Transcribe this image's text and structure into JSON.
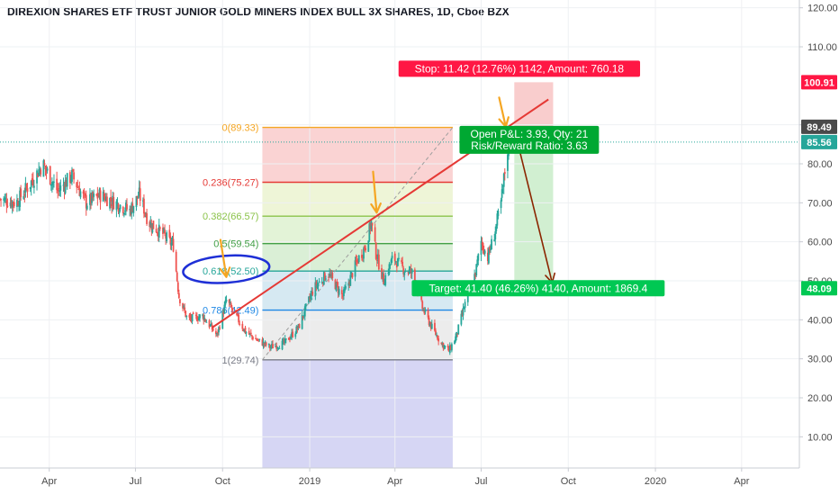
{
  "title": "DIREXION SHARES ETF TRUST JUNIOR GOLD MINERS INDEX BULL 3X SHARES, 1D, Cboe BZX",
  "colors": {
    "up": "#26a69a",
    "down": "#ef5350",
    "trendline": "#e53935",
    "stop_box": "#ff1744",
    "target_box": "#00c853",
    "blue_ink": "#1e2fd6",
    "arrow_orange": "#f5a623",
    "arrow_brown": "#8b2500"
  },
  "chart_data": {
    "type": "candlestick",
    "title": "DIREXION SHARES ETF TRUST JUNIOR GOLD MINERS INDEX BULL 3X SHARES, 1D, Cboe BZX",
    "y_axis": {
      "ylim": [
        2,
        122
      ],
      "ticks": [
        "10.00",
        "20.00",
        "30.00",
        "40.00",
        "50.00",
        "60.00",
        "70.00",
        "80.00",
        "90.00",
        "110.00",
        "120.00"
      ],
      "tick_values": [
        10,
        20,
        30,
        40,
        50,
        60,
        70,
        80,
        90,
        110,
        120
      ]
    },
    "x_axis": {
      "xlim": [
        "2018-02-08",
        "2020-06-01"
      ],
      "ticks": [
        "Apr",
        "Jul",
        "Oct",
        "2019",
        "Apr",
        "Jul",
        "Oct",
        "2020",
        "Apr"
      ],
      "tick_dates": [
        "2018-04-01",
        "2018-07-01",
        "2018-10-01",
        "2019-01-01",
        "2019-04-01",
        "2019-07-01",
        "2019-10-01",
        "2020-01-01",
        "2020-04-01"
      ]
    },
    "price_path": [
      [
        "2018-02-08",
        71
      ],
      [
        "2018-02-25",
        70
      ],
      [
        "2018-03-15",
        76
      ],
      [
        "2018-03-25",
        80
      ],
      [
        "2018-04-10",
        73
      ],
      [
        "2018-04-25",
        77
      ],
      [
        "2018-05-10",
        70
      ],
      [
        "2018-05-25",
        72
      ],
      [
        "2018-06-10",
        70
      ],
      [
        "2018-06-25",
        68
      ],
      [
        "2018-07-05",
        72
      ],
      [
        "2018-07-15",
        65
      ],
      [
        "2018-07-30",
        62
      ],
      [
        "2018-08-10",
        59
      ],
      [
        "2018-08-16",
        46
      ],
      [
        "2018-08-25",
        40
      ],
      [
        "2018-09-10",
        41
      ],
      [
        "2018-09-25",
        36
      ],
      [
        "2018-10-05",
        45
      ],
      [
        "2018-10-15",
        41
      ],
      [
        "2018-10-25",
        37
      ],
      [
        "2018-11-05",
        35
      ],
      [
        "2018-11-20",
        33
      ],
      [
        "2018-12-05",
        34
      ],
      [
        "2018-12-20",
        38
      ],
      [
        "2019-01-05",
        48
      ],
      [
        "2019-01-20",
        52
      ],
      [
        "2019-02-05",
        46
      ],
      [
        "2019-02-20",
        55
      ],
      [
        "2019-03-01",
        59
      ],
      [
        "2019-03-07",
        65
      ],
      [
        "2019-03-12",
        57
      ],
      [
        "2019-03-20",
        50
      ],
      [
        "2019-03-30",
        56
      ],
      [
        "2019-04-10",
        53
      ],
      [
        "2019-04-20",
        52
      ],
      [
        "2019-04-30",
        43
      ],
      [
        "2019-05-10",
        38
      ],
      [
        "2019-05-20",
        34
      ],
      [
        "2019-05-28",
        32
      ],
      [
        "2019-06-05",
        36
      ],
      [
        "2019-06-15",
        45
      ],
      [
        "2019-06-25",
        52
      ],
      [
        "2019-07-01",
        60
      ],
      [
        "2019-07-08",
        56
      ],
      [
        "2019-07-15",
        62
      ],
      [
        "2019-07-22",
        70
      ],
      [
        "2019-07-30",
        86
      ]
    ],
    "last_close": 85.56,
    "price_badges": [
      {
        "label": "100.91",
        "value": 100.91,
        "color": "#ff1744"
      },
      {
        "label": "89.49",
        "value": 89.49,
        "color": "#4a4a4a"
      },
      {
        "label": "85.56",
        "value": 85.56,
        "color": "#26a69a"
      },
      {
        "label": "48.09",
        "value": 48.09,
        "color": "#00c853"
      }
    ],
    "fibonacci": {
      "start_date": "2018-11-12",
      "end_date": "2019-06-01",
      "levels": [
        {
          "label": "0(89.33)",
          "value": 89.33,
          "color": "#f5a623"
        },
        {
          "label": "0.236(75.27)",
          "value": 75.27,
          "color": "#e53935"
        },
        {
          "label": "0.382(66.57)",
          "value": 66.57,
          "color": "#8bc34a"
        },
        {
          "label": "0.5(59.54)",
          "value": 59.54,
          "color": "#43a047"
        },
        {
          "label": "0.618(52.50)",
          "value": 52.5,
          "color": "#26a69a"
        },
        {
          "label": "0.786(42.49)",
          "value": 42.49,
          "color": "#1e88e5"
        },
        {
          "label": "1(29.74)",
          "value": 29.74,
          "color": "#787b86"
        }
      ]
    },
    "trendline": {
      "from": [
        "2018-09-20",
        38
      ],
      "to": [
        "2019-09-10",
        96.5
      ]
    },
    "position": {
      "start_date": "2019-08-05",
      "end_date": "2019-09-15",
      "entry": 89.49,
      "stop": 100.91,
      "target": 48.09,
      "stop_label": "Stop: 11.42 (12.76%) 1142, Amount: 760.18",
      "target_label": "Target: 41.40 (46.26%) 4140, Amount: 1869.4",
      "pnl_label_1": "Open P&L: 3.93, Qty: 21",
      "pnl_label_2": "Risk/Reward Ratio: 3.63"
    }
  }
}
